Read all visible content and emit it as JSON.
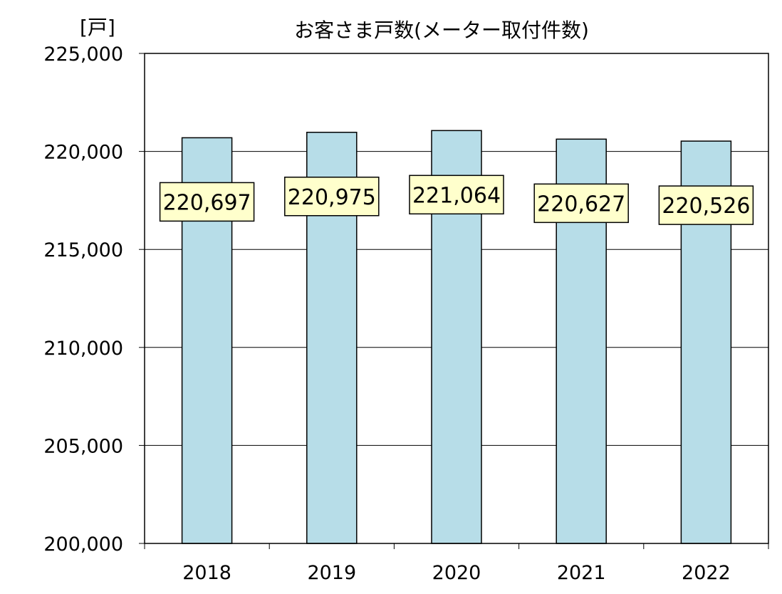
{
  "chart_data": {
    "type": "bar",
    "title": "お客さま戸数(メーター取付件数)",
    "unit_label": "[戸]",
    "categories": [
      "2018",
      "2019",
      "2020",
      "2021",
      "2022"
    ],
    "values": [
      220697,
      220975,
      221064,
      220627,
      220526
    ],
    "value_labels": [
      "220,697",
      "220,975",
      "221,064",
      "220,627",
      "220,526"
    ],
    "ylim": [
      200000,
      225000
    ],
    "yticks": [
      200000,
      205000,
      210000,
      215000,
      220000,
      225000
    ],
    "ytick_labels": [
      "200,000",
      "205,000",
      "210,000",
      "215,000",
      "220,000",
      "225,000"
    ],
    "grid": true,
    "legend": "none",
    "colors": {
      "bar_fill": "#b7dde8",
      "bar_stroke": "#000000",
      "label_bg": "#ffffcc",
      "grid": "#000000"
    }
  }
}
